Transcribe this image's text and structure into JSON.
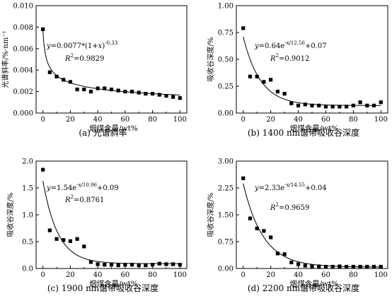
{
  "chart_data": [
    {
      "type": "scatter",
      "caption": "(a) 光谱斜率",
      "xlabel": "烟煤含量/wt%",
      "ylabel": "光谱斜率/%·nm⁻¹",
      "xlim": [
        -5,
        105
      ],
      "ylim": [
        0,
        0.01
      ],
      "xticks": [
        0,
        20,
        40,
        60,
        80,
        100
      ],
      "yticks": [
        "0.000",
        "0.002",
        "0.004",
        "0.006",
        "0.008",
        "0.010"
      ],
      "yticks_values": [
        0,
        0.002,
        0.004,
        0.006,
        0.008,
        0.01
      ],
      "equation": "y=0.0077*(1+x)",
      "equation_exp": "-0.33",
      "r2_label": "R",
      "r2_value": "=0.9829",
      "fit": {
        "form": "power",
        "a": 0.0077,
        "b": -0.33
      },
      "x": [
        0,
        5,
        10,
        15,
        20,
        25,
        30,
        35,
        40,
        45,
        50,
        55,
        60,
        65,
        70,
        75,
        80,
        85,
        90,
        95,
        100
      ],
      "y": [
        0.0078,
        0.0038,
        0.0034,
        0.0031,
        0.0029,
        0.0022,
        0.0022,
        0.002,
        0.0023,
        0.0023,
        0.0022,
        0.0021,
        0.002,
        0.002,
        0.0019,
        0.0018,
        0.0018,
        0.0017,
        0.0016,
        0.0015,
        0.0014
      ]
    },
    {
      "type": "scatter",
      "caption": "(b) 1400 nm谱带吸收谷深度",
      "xlabel": "烟煤含量/wt%",
      "ylabel": "吸收谷深度/%",
      "xlim": [
        -5,
        105
      ],
      "ylim": [
        0,
        1.0
      ],
      "xticks": [
        0,
        20,
        40,
        60,
        80,
        100
      ],
      "yticks": [
        "0.00",
        "0.25",
        "0.50",
        "0.75",
        "1.00"
      ],
      "yticks_values": [
        0,
        0.25,
        0.5,
        0.75,
        1.0
      ],
      "equation": "y=0.64e",
      "equation_exp": "-x/12.56",
      "equation_tail": "+0.07",
      "r2_label": "R",
      "r2_value": "=0.9012",
      "fit": {
        "form": "exp",
        "a": 0.64,
        "t": 12.56,
        "c": 0.07
      },
      "x": [
        0,
        5,
        10,
        15,
        20,
        25,
        30,
        35,
        40,
        45,
        50,
        55,
        60,
        65,
        70,
        75,
        80,
        85,
        90,
        95,
        100
      ],
      "y": [
        0.79,
        0.34,
        0.34,
        0.29,
        0.31,
        0.2,
        0.18,
        0.09,
        0.07,
        0.08,
        0.07,
        0.07,
        0.06,
        0.06,
        0.06,
        0.06,
        0.07,
        0.1,
        0.07,
        0.07,
        0.1
      ]
    },
    {
      "type": "scatter",
      "caption": "(c) 1900 nm谱带吸收谷深度",
      "xlabel": "烟煤含量/wt%",
      "ylabel": "吸收谷深度/%",
      "xlim": [
        -5,
        105
      ],
      "ylim": [
        0,
        2.0
      ],
      "xticks": [
        0,
        20,
        40,
        60,
        80,
        100
      ],
      "yticks": [
        "0.0",
        "0.5",
        "1.0",
        "1.5",
        "2.0"
      ],
      "yticks_values": [
        0,
        0.5,
        1.0,
        1.5,
        2.0
      ],
      "equation": "y=1.54e",
      "equation_exp": "-x/10.96",
      "equation_tail": "+0.09",
      "r2_label": "R",
      "r2_value": "=0.8761",
      "fit": {
        "form": "exp",
        "a": 1.54,
        "t": 10.96,
        "c": 0.09
      },
      "x": [
        0,
        5,
        10,
        15,
        20,
        25,
        30,
        35,
        40,
        45,
        50,
        55,
        60,
        65,
        70,
        75,
        80,
        85,
        90,
        95,
        100
      ],
      "y": [
        1.84,
        0.71,
        0.55,
        0.53,
        0.51,
        0.55,
        0.41,
        0.12,
        0.08,
        0.07,
        0.07,
        0.06,
        0.07,
        0.07,
        0.06,
        0.06,
        0.07,
        0.09,
        0.08,
        0.08,
        0.07
      ]
    },
    {
      "type": "scatter",
      "caption": "(d) 2200 nm谱带吸收谷深度",
      "xlabel": "烟煤含量/wt%",
      "ylabel": "吸收谷深度/%",
      "xlim": [
        -5,
        105
      ],
      "ylim": [
        0,
        3.0
      ],
      "xticks": [
        0,
        20,
        40,
        60,
        80,
        100
      ],
      "yticks": [
        "0.00",
        "0.75",
        "1.50",
        "2.25",
        "3.00"
      ],
      "yticks_values": [
        0,
        0.75,
        1.5,
        2.25,
        3.0
      ],
      "equation": "y=2.33e",
      "equation_exp": "-x/14.55",
      "equation_tail": "+0.04",
      "r2_label": "R",
      "r2_value": "=0.9659",
      "fit": {
        "form": "exp",
        "a": 2.33,
        "t": 14.55,
        "c": 0.04
      },
      "x": [
        0,
        5,
        10,
        15,
        20,
        25,
        30,
        35,
        40,
        45,
        50,
        55,
        60,
        65,
        70,
        75,
        80,
        85,
        90,
        95,
        100
      ],
      "y": [
        2.52,
        1.4,
        1.12,
        1.05,
        0.87,
        0.42,
        0.4,
        0.17,
        0.12,
        0.08,
        0.06,
        0.06,
        0.05,
        0.05,
        0.06,
        0.05,
        0.05,
        0.05,
        0.05,
        0.05,
        0.05
      ]
    }
  ]
}
